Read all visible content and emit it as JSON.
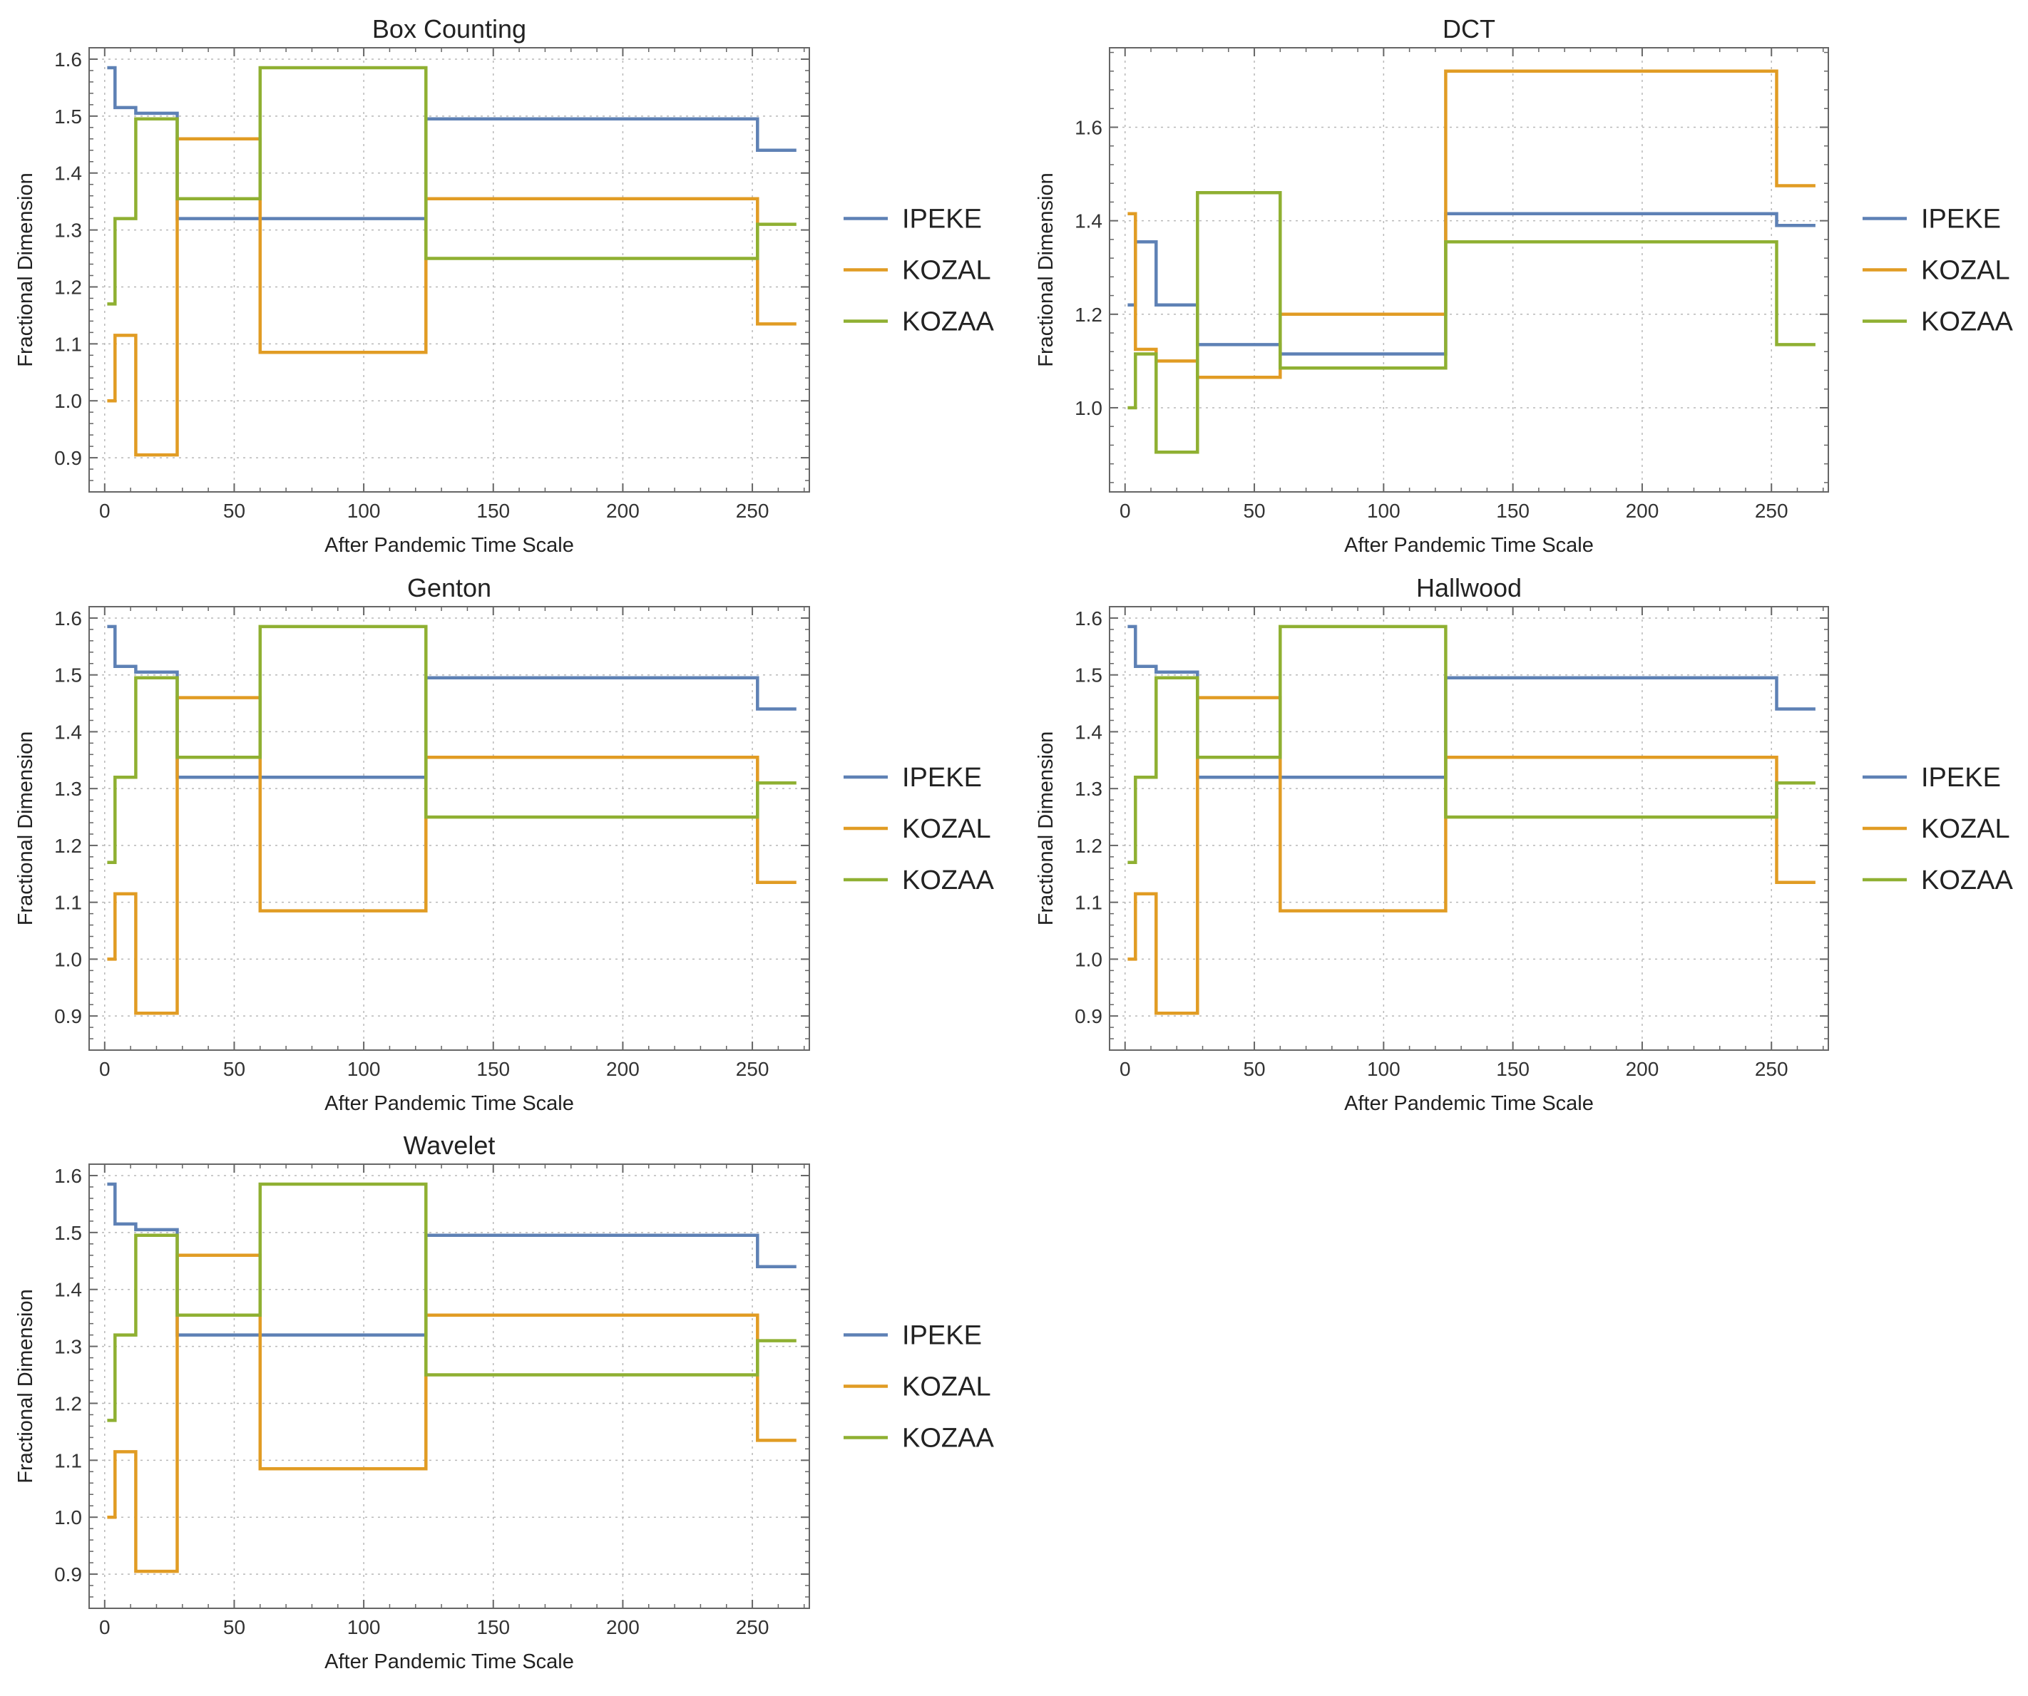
{
  "colors": {
    "IPEKE": "#5e81b5",
    "KOZAL": "#e19c24",
    "KOZAA": "#8fb032"
  },
  "chart_data": [
    {
      "type": "line",
      "title": "Box Counting",
      "xlabel": "After Pandemic Time Scale",
      "ylabel": "Fractional Dimension",
      "xlim": [
        -6,
        272
      ],
      "ylim": [
        0.84,
        1.62
      ],
      "xticks": [
        0,
        50,
        100,
        150,
        200,
        250
      ],
      "yticks": [
        0.9,
        1.0,
        1.1,
        1.2,
        1.3,
        1.4,
        1.5,
        1.6
      ],
      "legend": "right",
      "series": [
        {
          "name": "IPEKE",
          "x": [
            1,
            4,
            4,
            12,
            12,
            28,
            28,
            60,
            60,
            124,
            124,
            252,
            252,
            267
          ],
          "y": [
            1.585,
            1.585,
            1.515,
            1.515,
            1.505,
            1.505,
            1.32,
            1.32,
            1.32,
            1.32,
            1.495,
            1.495,
            1.44,
            1.44
          ]
        },
        {
          "name": "KOZAL",
          "x": [
            1,
            4,
            4,
            12,
            12,
            28,
            28,
            60,
            60,
            124,
            124,
            252,
            252,
            267
          ],
          "y": [
            1.0,
            1.0,
            1.115,
            1.115,
            0.905,
            0.905,
            1.46,
            1.46,
            1.085,
            1.085,
            1.355,
            1.355,
            1.135,
            1.135
          ]
        },
        {
          "name": "KOZAA",
          "x": [
            1,
            4,
            4,
            12,
            12,
            28,
            28,
            60,
            60,
            124,
            124,
            252,
            252,
            267
          ],
          "y": [
            1.17,
            1.17,
            1.32,
            1.32,
            1.495,
            1.495,
            1.355,
            1.355,
            1.585,
            1.585,
            1.25,
            1.25,
            1.31,
            1.31
          ]
        }
      ]
    },
    {
      "type": "line",
      "title": "DCT",
      "xlabel": "After Pandemic Time Scale",
      "ylabel": "Fractional Dimension",
      "xlim": [
        -6,
        272
      ],
      "ylim": [
        0.82,
        1.77
      ],
      "xticks": [
        0,
        50,
        100,
        150,
        200,
        250
      ],
      "yticks": [
        1.0,
        1.2,
        1.4,
        1.6
      ],
      "legend": "right",
      "series": [
        {
          "name": "IPEKE",
          "x": [
            1,
            4,
            4,
            12,
            12,
            28,
            28,
            60,
            60,
            124,
            124,
            252,
            252,
            267
          ],
          "y": [
            1.22,
            1.22,
            1.355,
            1.355,
            1.22,
            1.22,
            1.135,
            1.135,
            1.115,
            1.115,
            1.415,
            1.415,
            1.39,
            1.39
          ]
        },
        {
          "name": "KOZAL",
          "x": [
            1,
            4,
            4,
            12,
            12,
            28,
            28,
            60,
            60,
            124,
            124,
            252,
            252,
            267
          ],
          "y": [
            1.415,
            1.415,
            1.125,
            1.125,
            1.1,
            1.1,
            1.065,
            1.065,
            1.2,
            1.2,
            1.72,
            1.72,
            1.475,
            1.475
          ]
        },
        {
          "name": "KOZAA",
          "x": [
            1,
            4,
            4,
            12,
            12,
            28,
            28,
            60,
            60,
            124,
            124,
            252,
            252,
            267
          ],
          "y": [
            1.0,
            1.0,
            1.115,
            1.115,
            0.905,
            0.905,
            1.46,
            1.46,
            1.085,
            1.085,
            1.355,
            1.355,
            1.135,
            1.135
          ]
        }
      ]
    },
    {
      "type": "line",
      "title": "Genton",
      "xlabel": "After Pandemic Time Scale",
      "ylabel": "Fractional Dimension",
      "xlim": [
        -6,
        272
      ],
      "ylim": [
        0.84,
        1.62
      ],
      "xticks": [
        0,
        50,
        100,
        150,
        200,
        250
      ],
      "yticks": [
        0.9,
        1.0,
        1.1,
        1.2,
        1.3,
        1.4,
        1.5,
        1.6
      ],
      "legend": "right",
      "series": [
        {
          "name": "IPEKE",
          "x": [
            1,
            4,
            4,
            12,
            12,
            28,
            28,
            60,
            60,
            124,
            124,
            252,
            252,
            267
          ],
          "y": [
            1.585,
            1.585,
            1.515,
            1.515,
            1.505,
            1.505,
            1.32,
            1.32,
            1.32,
            1.32,
            1.495,
            1.495,
            1.44,
            1.44
          ]
        },
        {
          "name": "KOZAL",
          "x": [
            1,
            4,
            4,
            12,
            12,
            28,
            28,
            60,
            60,
            124,
            124,
            252,
            252,
            267
          ],
          "y": [
            1.0,
            1.0,
            1.115,
            1.115,
            0.905,
            0.905,
            1.46,
            1.46,
            1.085,
            1.085,
            1.355,
            1.355,
            1.135,
            1.135
          ]
        },
        {
          "name": "KOZAA",
          "x": [
            1,
            4,
            4,
            12,
            12,
            28,
            28,
            60,
            60,
            124,
            124,
            252,
            252,
            267
          ],
          "y": [
            1.17,
            1.17,
            1.32,
            1.32,
            1.495,
            1.495,
            1.355,
            1.355,
            1.585,
            1.585,
            1.25,
            1.25,
            1.31,
            1.31
          ]
        }
      ]
    },
    {
      "type": "line",
      "title": "Hallwood",
      "xlabel": "After Pandemic Time Scale",
      "ylabel": "Fractional Dimension",
      "xlim": [
        -6,
        272
      ],
      "ylim": [
        0.84,
        1.62
      ],
      "xticks": [
        0,
        50,
        100,
        150,
        200,
        250
      ],
      "yticks": [
        0.9,
        1.0,
        1.1,
        1.2,
        1.3,
        1.4,
        1.5,
        1.6
      ],
      "legend": "right",
      "series": [
        {
          "name": "IPEKE",
          "x": [
            1,
            4,
            4,
            12,
            12,
            28,
            28,
            60,
            60,
            124,
            124,
            252,
            252,
            267
          ],
          "y": [
            1.585,
            1.585,
            1.515,
            1.515,
            1.505,
            1.505,
            1.32,
            1.32,
            1.32,
            1.32,
            1.495,
            1.495,
            1.44,
            1.44
          ]
        },
        {
          "name": "KOZAL",
          "x": [
            1,
            4,
            4,
            12,
            12,
            28,
            28,
            60,
            60,
            124,
            124,
            252,
            252,
            267
          ],
          "y": [
            1.0,
            1.0,
            1.115,
            1.115,
            0.905,
            0.905,
            1.46,
            1.46,
            1.085,
            1.085,
            1.355,
            1.355,
            1.135,
            1.135
          ]
        },
        {
          "name": "KOZAA",
          "x": [
            1,
            4,
            4,
            12,
            12,
            28,
            28,
            60,
            60,
            124,
            124,
            252,
            252,
            267
          ],
          "y": [
            1.17,
            1.17,
            1.32,
            1.32,
            1.495,
            1.495,
            1.355,
            1.355,
            1.585,
            1.585,
            1.25,
            1.25,
            1.31,
            1.31
          ]
        }
      ]
    },
    {
      "type": "line",
      "title": "Wavelet",
      "xlabel": "After Pandemic Time Scale",
      "ylabel": "Fractional Dimension",
      "xlim": [
        -6,
        272
      ],
      "ylim": [
        0.84,
        1.62
      ],
      "xticks": [
        0,
        50,
        100,
        150,
        200,
        250
      ],
      "yticks": [
        0.9,
        1.0,
        1.1,
        1.2,
        1.3,
        1.4,
        1.5,
        1.6
      ],
      "legend": "right",
      "series": [
        {
          "name": "IPEKE",
          "x": [
            1,
            4,
            4,
            12,
            12,
            28,
            28,
            60,
            60,
            124,
            124,
            252,
            252,
            267
          ],
          "y": [
            1.585,
            1.585,
            1.515,
            1.515,
            1.505,
            1.505,
            1.32,
            1.32,
            1.32,
            1.32,
            1.495,
            1.495,
            1.44,
            1.44
          ]
        },
        {
          "name": "KOZAL",
          "x": [
            1,
            4,
            4,
            12,
            12,
            28,
            28,
            60,
            60,
            124,
            124,
            252,
            252,
            267
          ],
          "y": [
            1.0,
            1.0,
            1.115,
            1.115,
            0.905,
            0.905,
            1.46,
            1.46,
            1.085,
            1.085,
            1.355,
            1.355,
            1.135,
            1.135
          ]
        },
        {
          "name": "KOZAA",
          "x": [
            1,
            4,
            4,
            12,
            12,
            28,
            28,
            60,
            60,
            124,
            124,
            252,
            252,
            267
          ],
          "y": [
            1.17,
            1.17,
            1.32,
            1.32,
            1.495,
            1.495,
            1.355,
            1.355,
            1.585,
            1.585,
            1.25,
            1.25,
            1.31,
            1.31
          ]
        }
      ]
    }
  ]
}
